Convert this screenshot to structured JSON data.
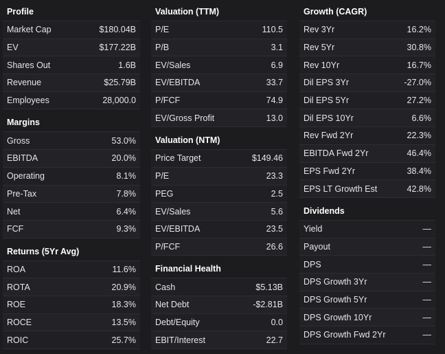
{
  "columns": [
    {
      "sections": [
        {
          "title": "Profile",
          "rows": [
            {
              "label": "Market Cap",
              "value": "$180.04B"
            },
            {
              "label": "EV",
              "value": "$177.22B"
            },
            {
              "label": "Shares Out",
              "value": "1.6B"
            },
            {
              "label": "Revenue",
              "value": "$25.79B"
            },
            {
              "label": "Employees",
              "value": "28,000.0"
            }
          ]
        },
        {
          "title": "Margins",
          "rows": [
            {
              "label": "Gross",
              "value": "53.0%"
            },
            {
              "label": "EBITDA",
              "value": "20.0%"
            },
            {
              "label": "Operating",
              "value": "8.1%"
            },
            {
              "label": "Pre-Tax",
              "value": "7.8%"
            },
            {
              "label": "Net",
              "value": "6.4%"
            },
            {
              "label": "FCF",
              "value": "9.3%"
            }
          ]
        },
        {
          "title": "Returns (5Yr Avg)",
          "rows": [
            {
              "label": "ROA",
              "value": "11.6%"
            },
            {
              "label": "ROTA",
              "value": "20.9%"
            },
            {
              "label": "ROE",
              "value": "18.3%"
            },
            {
              "label": "ROCE",
              "value": "13.5%"
            },
            {
              "label": "ROIC",
              "value": "25.7%"
            }
          ]
        }
      ]
    },
    {
      "sections": [
        {
          "title": "Valuation (TTM)",
          "rows": [
            {
              "label": "P/E",
              "value": "110.5"
            },
            {
              "label": "P/B",
              "value": "3.1"
            },
            {
              "label": "EV/Sales",
              "value": "6.9"
            },
            {
              "label": "EV/EBITDA",
              "value": "33.7"
            },
            {
              "label": "P/FCF",
              "value": "74.9"
            },
            {
              "label": "EV/Gross Profit",
              "value": "13.0"
            }
          ]
        },
        {
          "title": "Valuation (NTM)",
          "rows": [
            {
              "label": "Price Target",
              "value": "$149.46"
            },
            {
              "label": "P/E",
              "value": "23.3"
            },
            {
              "label": "PEG",
              "value": "2.5"
            },
            {
              "label": "EV/Sales",
              "value": "5.6"
            },
            {
              "label": "EV/EBITDA",
              "value": "23.5"
            },
            {
              "label": "P/FCF",
              "value": "26.6"
            }
          ]
        },
        {
          "title": "Financial Health",
          "rows": [
            {
              "label": "Cash",
              "value": "$5.13B"
            },
            {
              "label": "Net Debt",
              "value": "-$2.81B"
            },
            {
              "label": "Debt/Equity",
              "value": "0.0"
            },
            {
              "label": "EBIT/Interest",
              "value": "22.7"
            }
          ]
        }
      ]
    },
    {
      "sections": [
        {
          "title": "Growth (CAGR)",
          "rows": [
            {
              "label": "Rev 3Yr",
              "value": "16.2%"
            },
            {
              "label": "Rev 5Yr",
              "value": "30.8%"
            },
            {
              "label": "Rev 10Yr",
              "value": "16.7%"
            },
            {
              "label": "Dil EPS 3Yr",
              "value": "-27.0%"
            },
            {
              "label": "Dil EPS 5Yr",
              "value": "27.2%"
            },
            {
              "label": "Dil EPS 10Yr",
              "value": "6.6%"
            },
            {
              "label": "Rev Fwd 2Yr",
              "value": "22.3%"
            },
            {
              "label": "EBITDA Fwd 2Yr",
              "value": "46.4%"
            },
            {
              "label": "EPS Fwd 2Yr",
              "value": "38.4%"
            },
            {
              "label": "EPS LT Growth Est",
              "value": "42.8%"
            }
          ]
        },
        {
          "title": "Dividends",
          "rows": [
            {
              "label": "Yield",
              "value": "—"
            },
            {
              "label": "Payout",
              "value": "—"
            },
            {
              "label": "DPS",
              "value": "—"
            },
            {
              "label": "DPS Growth 3Yr",
              "value": "—"
            },
            {
              "label": "DPS Growth 5Yr",
              "value": "—"
            },
            {
              "label": "DPS Growth 10Yr",
              "value": "—"
            },
            {
              "label": "DPS Growth Fwd 2Yr",
              "value": "—"
            }
          ]
        }
      ]
    }
  ]
}
